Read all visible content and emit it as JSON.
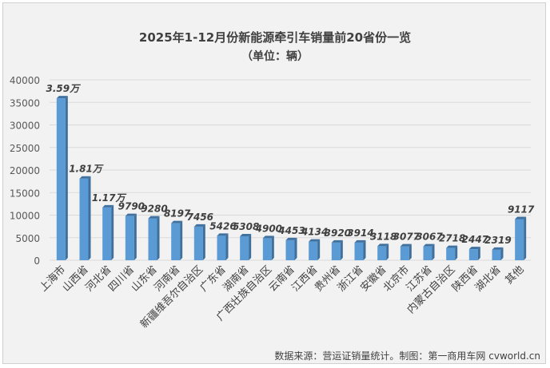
{
  "chart_data": {
    "type": "bar",
    "title": "2025年1-12月份新能源牵引车销量前20省份一览",
    "subtitle": "（单位：辆）",
    "categories": [
      "上海市",
      "山西省",
      "河北省",
      "四川省",
      "山东省",
      "河南省",
      "新疆维吾尔自治区",
      "广东省",
      "湖南省",
      "广西壮族自治区",
      "云南省",
      "江西省",
      "贵州省",
      "浙江省",
      "安徽省",
      "北京市",
      "江苏省",
      "内蒙古自治区",
      "陕西省",
      "湖北省",
      "其他"
    ],
    "values": [
      35900,
      18100,
      11700,
      9790,
      9280,
      8197,
      7456,
      5426,
      5308,
      4900,
      4453,
      4134,
      3920,
      3914,
      3118,
      3077,
      3067,
      2718,
      2447,
      2319,
      9117
    ],
    "data_labels": [
      "3.59万",
      "1.81万",
      "1.17万",
      "9790",
      "9280",
      "8197",
      "7456",
      "5426",
      "5308",
      "4900",
      "4453",
      "4134",
      "3920",
      "3914",
      "3118",
      "3077",
      "3067",
      "2718",
      "2447",
      "2319",
      "9117"
    ],
    "yticks": [
      "0",
      "5000",
      "10000",
      "15000",
      "20000",
      "25000",
      "30000",
      "35000",
      "40000"
    ],
    "ylim": [
      0,
      40000
    ],
    "grid": true,
    "legend": "none",
    "bar_color": "#5b9bd5",
    "footer": "数据来源：营运证销量统计。制图：第一商用车网 cvworld.cn"
  }
}
